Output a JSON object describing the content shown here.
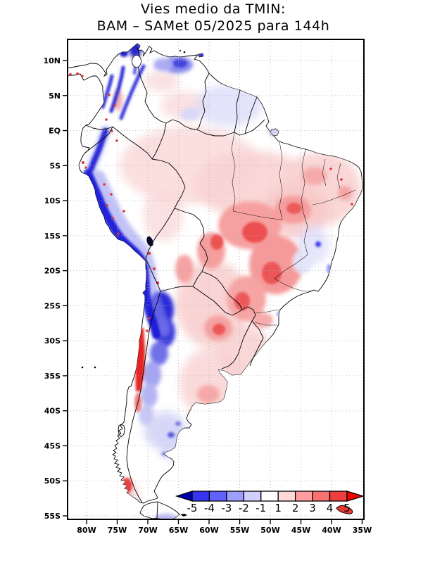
{
  "title": {
    "line1": "Vies medio da TMIN:",
    "line2": "BAM – SAMet 05/2025  para 144h"
  },
  "axes": {
    "lat_labels": [
      "10N",
      "5N",
      "EQ",
      "5S",
      "10S",
      "15S",
      "20S",
      "25S",
      "30S",
      "35S",
      "40S",
      "45S",
      "50S",
      "55S"
    ],
    "lon_labels": [
      "80W",
      "75W",
      "70W",
      "65W",
      "60W",
      "55W",
      "50W",
      "45W",
      "40W",
      "35W"
    ]
  },
  "colorbar": {
    "labels": [
      "-5",
      "-4",
      "-3",
      "-2",
      "-1",
      "1",
      "2",
      "3",
      "4",
      "5"
    ],
    "colors": [
      "#0000b2",
      "#3636f2",
      "#6161ff",
      "#9e9eff",
      "#d0d0ff",
      "#ffffff",
      "#ffd8d8",
      "#ff9e9e",
      "#f87272",
      "#ee3e3e",
      "#f20000"
    ],
    "grid_color": "#b2b2b2",
    "frame_color": "#000000"
  }
}
